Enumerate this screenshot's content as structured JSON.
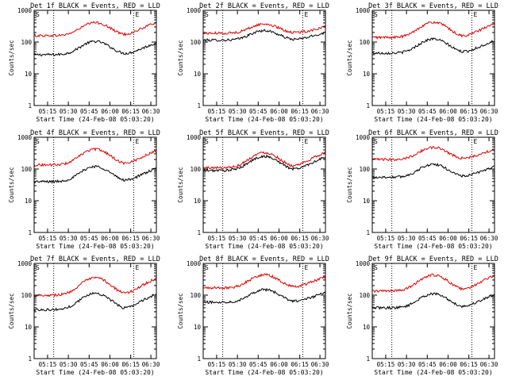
{
  "colors": {
    "events": "#000000",
    "lld": "#e00000",
    "axis": "#000000"
  },
  "shared": {
    "xlabel": "Start Time (24-Feb-08 05:03:20)",
    "ylabel": "Counts/sec",
    "x_tick_labels": [
      "05:15",
      "05:30",
      "05:45",
      "06:00",
      "06:15",
      "06:30"
    ],
    "y_tick_labels": [
      "1",
      "10",
      "100",
      "1000"
    ],
    "marker_labels": [
      "S",
      "E"
    ],
    "ylim": [
      1,
      1000
    ],
    "yscale": "log"
  },
  "chart_data": [
    {
      "type": "line",
      "title": "Det 1f BLACK = Events, RED = LLD",
      "series": [
        {
          "name": "Events",
          "base": 40,
          "peak": 105,
          "tail": 95
        },
        {
          "name": "LLD",
          "base": 160,
          "peak": 410,
          "tail": 420
        }
      ]
    },
    {
      "type": "line",
      "title": "Det 2f BLACK = Events, RED = LLD",
      "series": [
        {
          "name": "Events",
          "base": 115,
          "peak": 230,
          "tail": 200
        },
        {
          "name": "LLD",
          "base": 190,
          "peak": 370,
          "tail": 300
        }
      ]
    },
    {
      "type": "line",
      "title": "Det 3f BLACK = Events, RED = LLD",
      "series": [
        {
          "name": "Events",
          "base": 45,
          "peak": 125,
          "tail": 110
        },
        {
          "name": "LLD",
          "base": 140,
          "peak": 420,
          "tail": 380
        }
      ]
    },
    {
      "type": "line",
      "title": "Det 4f BLACK = Events, RED = LLD",
      "series": [
        {
          "name": "Events",
          "base": 40,
          "peak": 120,
          "tail": 105
        },
        {
          "name": "LLD",
          "base": 135,
          "peak": 420,
          "tail": 380
        }
      ]
    },
    {
      "type": "line",
      "title": "Det 5f BLACK = Events, RED = LLD",
      "series": [
        {
          "name": "Events",
          "base": 90,
          "peak": 250,
          "tail": 240
        },
        {
          "name": "LLD",
          "base": 110,
          "peak": 330,
          "tail": 340
        }
      ]
    },
    {
      "type": "line",
      "title": "Det 6f BLACK = Events, RED = LLD",
      "series": [
        {
          "name": "Events",
          "base": 55,
          "peak": 140,
          "tail": 120
        },
        {
          "name": "LLD",
          "base": 200,
          "peak": 480,
          "tail": 420
        }
      ]
    },
    {
      "type": "line",
      "title": "Det 7f BLACK = Events, RED = LLD",
      "series": [
        {
          "name": "Events",
          "base": 35,
          "peak": 115,
          "tail": 110
        },
        {
          "name": "LLD",
          "base": 100,
          "peak": 350,
          "tail": 340
        }
      ]
    },
    {
      "type": "line",
      "title": "Det 8f BLACK = Events, RED = LLD",
      "series": [
        {
          "name": "Events",
          "base": 60,
          "peak": 150,
          "tail": 120
        },
        {
          "name": "LLD",
          "base": 170,
          "peak": 440,
          "tail": 380
        }
      ]
    },
    {
      "type": "line",
      "title": "Det 9f BLACK = Events, RED = LLD",
      "series": [
        {
          "name": "Events",
          "base": 40,
          "peak": 110,
          "tail": 105
        },
        {
          "name": "LLD",
          "base": 135,
          "peak": 430,
          "tail": 420
        }
      ]
    }
  ]
}
